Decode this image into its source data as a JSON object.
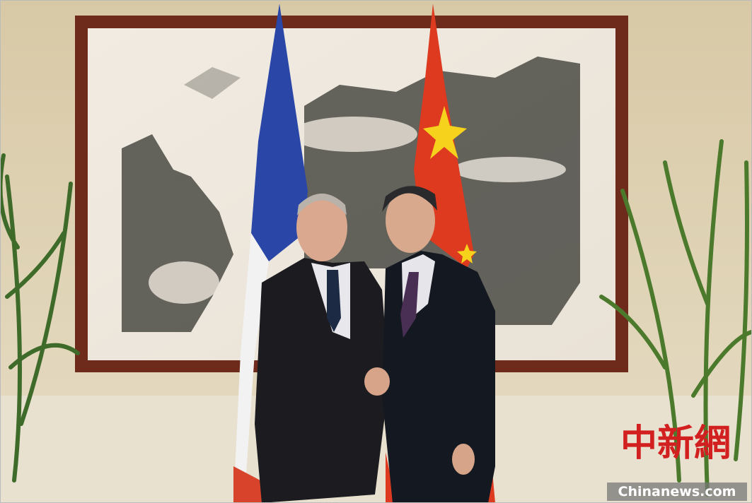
{
  "watermark": {
    "logo": "中新網",
    "site": "Chinanews.com"
  }
}
